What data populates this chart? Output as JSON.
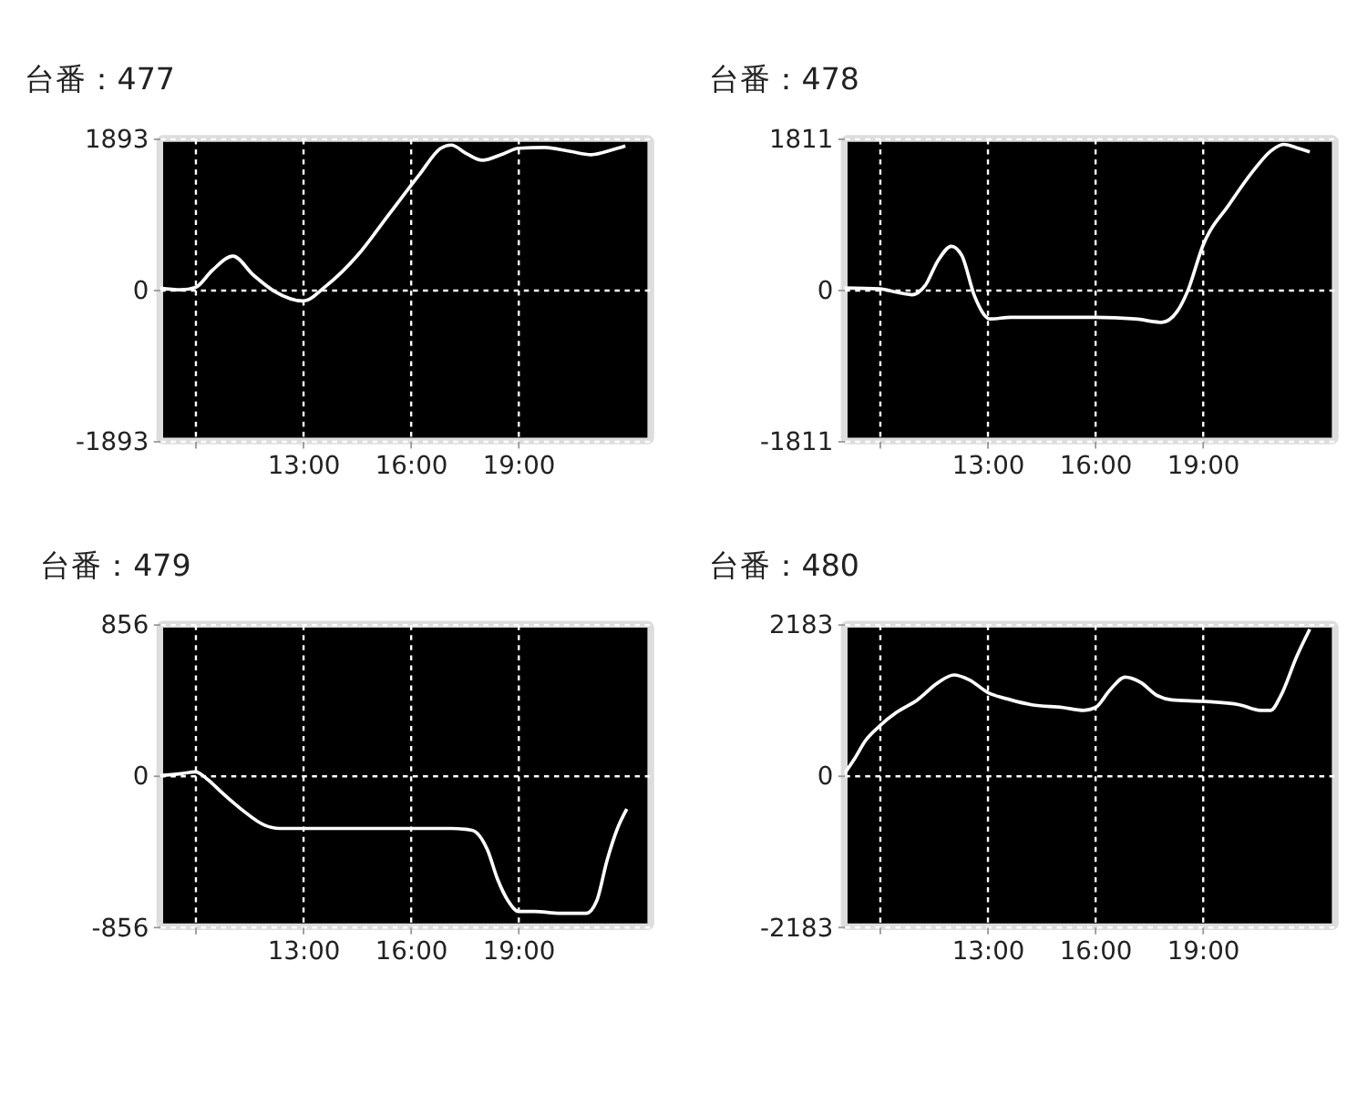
{
  "chart_data": [
    {
      "type": "line",
      "title": "台番：477",
      "grid": true,
      "xlim": [
        9,
        22.7
      ],
      "ylim": [
        -1893,
        1893
      ],
      "yticks": [
        -1893,
        0,
        1893
      ],
      "xticks": [
        {
          "value": 10,
          "label": null
        },
        {
          "value": 13,
          "label": "13:00"
        },
        {
          "value": 16,
          "label": "16:00"
        },
        {
          "value": 19,
          "label": "19:00"
        }
      ],
      "series": [
        {
          "color": "#ffffff",
          "x": [
            9.0,
            9.59,
            10.0,
            10.46,
            11.04,
            11.62,
            12.2,
            13.0,
            13.65,
            14.52,
            15.39,
            16.26,
            16.84,
            17.13,
            17.57,
            18.0,
            18.58,
            19.01,
            19.74,
            20.46,
            21.04,
            21.62,
            21.99
          ],
          "values": [
            20,
            0,
            30,
            240,
            420,
            180,
            -20,
            -140,
            50,
            430,
            940,
            1450,
            1770,
            1810,
            1700,
            1620,
            1700,
            1770,
            1780,
            1730,
            1690,
            1750,
            1800
          ]
        }
      ]
    },
    {
      "type": "line",
      "title": "台番：478",
      "grid": true,
      "xlim": [
        9,
        22.7
      ],
      "ylim": [
        -1811,
        1811
      ],
      "yticks": [
        -1811,
        0,
        1811
      ],
      "xticks": [
        {
          "value": 10,
          "label": null
        },
        {
          "value": 13,
          "label": "13:00"
        },
        {
          "value": 16,
          "label": "16:00"
        },
        {
          "value": 19,
          "label": "19:00"
        }
      ],
      "series": [
        {
          "color": "#ffffff",
          "x": [
            9.0,
            10.0,
            10.46,
            10.9,
            11.26,
            11.62,
            11.99,
            12.28,
            12.64,
            13.07,
            13.65,
            14.67,
            16.01,
            17.13,
            17.86,
            18.29,
            18.58,
            19.01,
            19.74,
            20.46,
            20.9,
            21.26,
            21.62,
            21.99
          ],
          "values": [
            20,
            10,
            -30,
            -60,
            50,
            350,
            520,
            410,
            -80,
            -350,
            -330,
            -330,
            -330,
            -350,
            -390,
            -260,
            -20,
            530,
            1020,
            1450,
            1660,
            1740,
            1700,
            1650
          ]
        }
      ]
    },
    {
      "type": "line",
      "title": "台番：479",
      "grid": true,
      "xlim": [
        9,
        22.7
      ],
      "ylim": [
        -856,
        856
      ],
      "yticks": [
        -856,
        0,
        856
      ],
      "xticks": [
        {
          "value": 10,
          "label": null
        },
        {
          "value": 13,
          "label": "13:00"
        },
        {
          "value": 16,
          "label": "16:00"
        },
        {
          "value": 19,
          "label": "19:00"
        }
      ],
      "series": [
        {
          "color": "#ffffff",
          "x": [
            9.0,
            9.59,
            10.0,
            10.32,
            10.75,
            11.33,
            11.91,
            12.35,
            13.0,
            14.67,
            16.01,
            17.13,
            17.71,
            18.14,
            18.43,
            18.72,
            19.01,
            19.45,
            20.17,
            20.9,
            21.19,
            21.48,
            21.77,
            22.03
          ],
          "values": [
            0,
            10,
            20,
            -20,
            -100,
            -200,
            -280,
            -300,
            -300,
            -300,
            -300,
            -300,
            -310,
            -420,
            -590,
            -710,
            -770,
            -770,
            -780,
            -780,
            -710,
            -480,
            -300,
            -190
          ]
        }
      ]
    },
    {
      "type": "line",
      "title": "台番：480",
      "grid": true,
      "xlim": [
        9,
        22.7
      ],
      "ylim": [
        -2183,
        2183
      ],
      "yticks": [
        -2183,
        0,
        2183
      ],
      "xticks": [
        {
          "value": 10,
          "label": null
        },
        {
          "value": 13,
          "label": "13:00"
        },
        {
          "value": 16,
          "label": "16:00"
        },
        {
          "value": 19,
          "label": "19:00"
        }
      ],
      "series": [
        {
          "color": "#ffffff",
          "x": [
            9.0,
            9.3,
            9.59,
            10.0,
            10.46,
            11.04,
            11.62,
            12.06,
            12.49,
            13.0,
            13.65,
            14.23,
            15.1,
            15.68,
            16.01,
            16.41,
            16.84,
            17.28,
            17.71,
            18.14,
            19.01,
            20.03,
            20.61,
            20.9,
            21.19,
            21.62,
            21.99
          ],
          "values": [
            20,
            250,
            500,
            720,
            910,
            1090,
            1340,
            1450,
            1380,
            1200,
            1090,
            1020,
            980,
            940,
            980,
            1230,
            1420,
            1340,
            1160,
            1090,
            1070,
            1020,
            940,
            940,
            1160,
            1710,
            2110
          ]
        }
      ]
    }
  ]
}
